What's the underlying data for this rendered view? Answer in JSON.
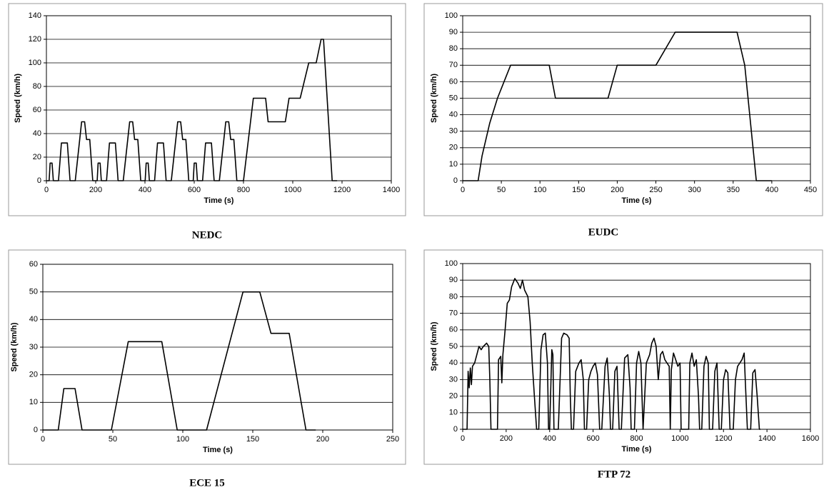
{
  "chart_data": [
    {
      "type": "line",
      "title": "NEDC",
      "x_label": "Time (s)",
      "y_label": "Speed (km/h)",
      "color": "#000000",
      "grid": true,
      "xlim": [
        0,
        1400
      ],
      "ylim": [
        0,
        140
      ],
      "xticks": [
        0,
        200,
        400,
        600,
        800,
        1000,
        1200,
        1400
      ],
      "yticks": [
        0,
        20,
        40,
        60,
        80,
        100,
        120,
        140
      ],
      "x": [
        0,
        11,
        15,
        23,
        28,
        49,
        61,
        85,
        96,
        117,
        143,
        155,
        163,
        176,
        188,
        195,
        206,
        210,
        218,
        223,
        244,
        256,
        280,
        291,
        312,
        338,
        350,
        358,
        371,
        383,
        390,
        401,
        405,
        413,
        418,
        439,
        451,
        475,
        486,
        507,
        533,
        545,
        553,
        566,
        578,
        585,
        596,
        600,
        608,
        613,
        634,
        646,
        670,
        681,
        702,
        728,
        740,
        748,
        761,
        773,
        800,
        840,
        890,
        900,
        970,
        985,
        1030,
        1065,
        1095,
        1115,
        1125,
        1160,
        1180
      ],
      "values": [
        0,
        0,
        15,
        15,
        0,
        0,
        32,
        32,
        0,
        0,
        50,
        50,
        35,
        35,
        0,
        0,
        0,
        15,
        15,
        0,
        0,
        32,
        32,
        0,
        0,
        50,
        50,
        35,
        35,
        0,
        0,
        0,
        15,
        15,
        0,
        0,
        32,
        32,
        0,
        0,
        50,
        50,
        35,
        35,
        0,
        0,
        0,
        15,
        15,
        0,
        0,
        32,
        32,
        0,
        0,
        50,
        50,
        35,
        35,
        0,
        0,
        70,
        70,
        50,
        50,
        70,
        70,
        100,
        100,
        120,
        120,
        0,
        0
      ]
    },
    {
      "type": "line",
      "title": "EUDC",
      "x_label": "Time (s)",
      "y_label": "Speed (km/h)",
      "color": "#000000",
      "grid": true,
      "xlim": [
        0,
        450
      ],
      "ylim": [
        0,
        100
      ],
      "xticks": [
        0,
        50,
        100,
        150,
        200,
        250,
        300,
        350,
        400,
        450
      ],
      "yticks": [
        0,
        10,
        20,
        30,
        40,
        50,
        60,
        70,
        80,
        90,
        100
      ],
      "x": [
        0,
        20,
        25,
        35,
        45,
        62,
        112,
        120,
        188,
        200,
        250,
        275,
        355,
        365,
        380,
        400
      ],
      "values": [
        0,
        0,
        15,
        35,
        50,
        70,
        70,
        50,
        50,
        70,
        70,
        90,
        90,
        70,
        0,
        0
      ]
    },
    {
      "type": "line",
      "title": "ECE 15",
      "x_label": "Time (s)",
      "y_label": "Speed (km/h)",
      "color": "#000000",
      "grid": true,
      "xlim": [
        0,
        250
      ],
      "ylim": [
        0,
        60
      ],
      "xticks": [
        0,
        50,
        100,
        150,
        200,
        250
      ],
      "yticks": [
        0,
        10,
        20,
        30,
        40,
        50,
        60
      ],
      "x": [
        0,
        11,
        15,
        23,
        28,
        49,
        61,
        85,
        96,
        117,
        143,
        155,
        163,
        176,
        188,
        195
      ],
      "values": [
        0,
        0,
        15,
        15,
        0,
        0,
        32,
        32,
        0,
        0,
        50,
        50,
        35,
        35,
        0,
        0
      ]
    },
    {
      "type": "line",
      "title": "FTP 72",
      "x_label": "Time (s)",
      "y_label": "Speed (km/h)",
      "color": "#000000",
      "grid": true,
      "xlim": [
        0,
        1600
      ],
      "ylim": [
        0,
        100
      ],
      "xticks": [
        0,
        200,
        400,
        600,
        800,
        1000,
        1200,
        1400,
        1600
      ],
      "yticks": [
        0,
        10,
        20,
        30,
        40,
        50,
        60,
        70,
        80,
        90,
        100
      ],
      "x": [
        0,
        20,
        25,
        30,
        35,
        40,
        45,
        55,
        65,
        75,
        85,
        95,
        110,
        120,
        125,
        130,
        160,
        165,
        175,
        180,
        185,
        195,
        205,
        215,
        225,
        240,
        255,
        265,
        275,
        285,
        300,
        310,
        320,
        330,
        340,
        350,
        360,
        370,
        380,
        390,
        395,
        400,
        410,
        415,
        420,
        440,
        455,
        465,
        480,
        490,
        495,
        500,
        510,
        520,
        535,
        545,
        555,
        560,
        570,
        580,
        590,
        600,
        610,
        620,
        630,
        640,
        655,
        665,
        675,
        680,
        690,
        700,
        710,
        720,
        730,
        745,
        760,
        770,
        775,
        790,
        800,
        810,
        820,
        830,
        845,
        860,
        870,
        880,
        890,
        900,
        910,
        920,
        930,
        940,
        950,
        955,
        960,
        970,
        980,
        990,
        1000,
        1005,
        1040,
        1045,
        1055,
        1065,
        1075,
        1085,
        1090,
        1100,
        1110,
        1120,
        1130,
        1135,
        1150,
        1160,
        1170,
        1180,
        1190,
        1200,
        1210,
        1220,
        1230,
        1245,
        1255,
        1265,
        1275,
        1285,
        1295,
        1300,
        1310,
        1325,
        1335,
        1345,
        1355,
        1365,
        1370
      ],
      "values": [
        0,
        0,
        35,
        25,
        37,
        27,
        38,
        40,
        45,
        50,
        48,
        50,
        52,
        50,
        30,
        0,
        0,
        42,
        44,
        28,
        45,
        60,
        76,
        78,
        86,
        91,
        88,
        85,
        90,
        84,
        80,
        65,
        40,
        20,
        0,
        0,
        48,
        57,
        58,
        40,
        0,
        0,
        48,
        45,
        0,
        0,
        55,
        58,
        57,
        55,
        20,
        0,
        0,
        35,
        40,
        42,
        30,
        0,
        0,
        30,
        35,
        38,
        40,
        33,
        0,
        0,
        38,
        43,
        20,
        0,
        0,
        35,
        38,
        0,
        0,
        43,
        45,
        25,
        0,
        0,
        40,
        47,
        40,
        0,
        40,
        45,
        52,
        55,
        50,
        30,
        45,
        47,
        42,
        40,
        38,
        0,
        36,
        46,
        42,
        38,
        40,
        0,
        0,
        40,
        46,
        38,
        42,
        20,
        0,
        0,
        38,
        44,
        40,
        0,
        0,
        35,
        40,
        0,
        0,
        30,
        36,
        34,
        0,
        0,
        30,
        38,
        40,
        42,
        46,
        30,
        0,
        0,
        34,
        36,
        20,
        0,
        0
      ]
    }
  ]
}
